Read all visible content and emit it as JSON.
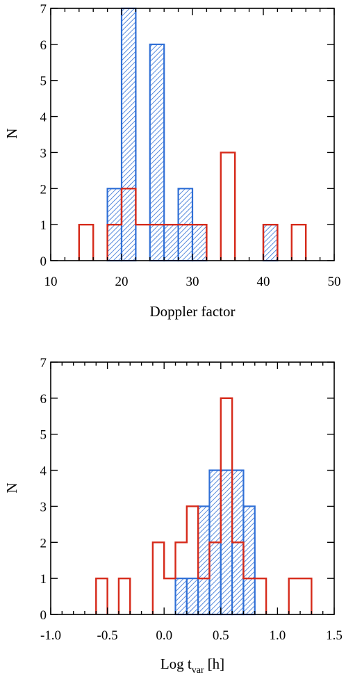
{
  "colors": {
    "blue": "#2f6fd6",
    "red": "#d62a1a",
    "axis": "#000000"
  },
  "chart_data": [
    {
      "type": "histogram",
      "xlabel": "Doppler factor",
      "ylabel": "N",
      "xlim": [
        10,
        50
      ],
      "ylim": [
        0,
        7
      ],
      "x_ticks": [
        "10",
        "20",
        "30",
        "40",
        "50"
      ],
      "y_ticks": [
        "0",
        "1",
        "2",
        "3",
        "4",
        "5",
        "6",
        "7"
      ],
      "bin_width": 2,
      "series": [
        {
          "style": "hatched-blue",
          "bins": [
            [
              18,
              2
            ],
            [
              20,
              7
            ],
            [
              24,
              6
            ],
            [
              26,
              1
            ],
            [
              28,
              2
            ],
            [
              30,
              1
            ],
            [
              40,
              1
            ]
          ]
        },
        {
          "style": "outline-red",
          "bins": [
            [
              14,
              1
            ],
            [
              18,
              1
            ],
            [
              20,
              2
            ],
            [
              22,
              1
            ],
            [
              24,
              1
            ],
            [
              26,
              1
            ],
            [
              28,
              1
            ],
            [
              30,
              1
            ],
            [
              34,
              3
            ],
            [
              40,
              1
            ],
            [
              44,
              1
            ]
          ]
        }
      ]
    },
    {
      "type": "histogram",
      "xlabel": "Log t",
      "xlabel_sub": "var",
      "xlabel_unit": "[h]",
      "ylabel": "N",
      "xlim": [
        -1.0,
        1.5
      ],
      "ylim": [
        0,
        7
      ],
      "x_ticks": [
        "-1.0",
        "-0.5",
        "0.0",
        "0.5",
        "1.0",
        "1.5"
      ],
      "y_ticks": [
        "0",
        "1",
        "2",
        "3",
        "4",
        "5",
        "6",
        "7"
      ],
      "bin_width": 0.1,
      "series": [
        {
          "style": "hatched-blue",
          "bins": [
            [
              0.1,
              1
            ],
            [
              0.2,
              1
            ],
            [
              0.3,
              3
            ],
            [
              0.4,
              4
            ],
            [
              0.5,
              4
            ],
            [
              0.6,
              4
            ],
            [
              0.7,
              3
            ]
          ]
        },
        {
          "style": "outline-red",
          "bins": [
            [
              -0.6,
              1
            ],
            [
              -0.4,
              1
            ],
            [
              -0.1,
              2
            ],
            [
              0.0,
              1
            ],
            [
              0.1,
              2
            ],
            [
              0.2,
              3
            ],
            [
              0.3,
              1
            ],
            [
              0.4,
              2
            ],
            [
              0.5,
              6
            ],
            [
              0.6,
              2
            ],
            [
              0.7,
              1
            ],
            [
              0.8,
              1
            ],
            [
              1.1,
              1
            ],
            [
              1.2,
              1
            ]
          ]
        }
      ]
    }
  ]
}
